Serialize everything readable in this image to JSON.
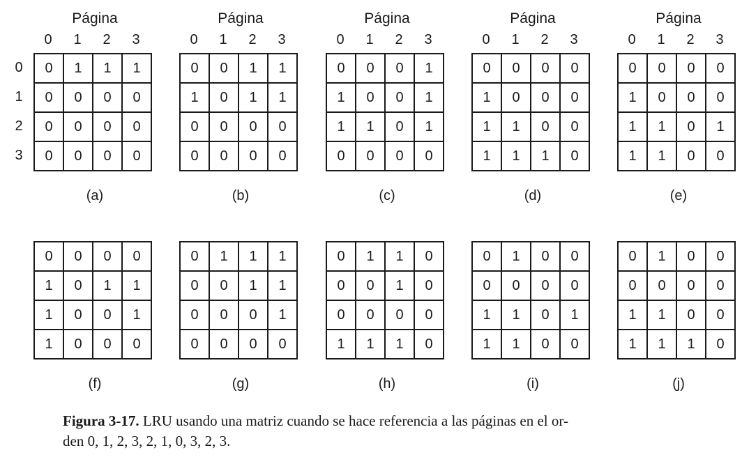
{
  "page_word": "Página",
  "col_headers": [
    "0",
    "1",
    "2",
    "3"
  ],
  "row_headers": [
    "0",
    "1",
    "2",
    "3"
  ],
  "panels": [
    {
      "label": "(a)",
      "matrix": [
        [
          "0",
          "1",
          "1",
          "1"
        ],
        [
          "0",
          "0",
          "0",
          "0"
        ],
        [
          "0",
          "0",
          "0",
          "0"
        ],
        [
          "0",
          "0",
          "0",
          "0"
        ]
      ]
    },
    {
      "label": "(b)",
      "matrix": [
        [
          "0",
          "0",
          "1",
          "1"
        ],
        [
          "1",
          "0",
          "1",
          "1"
        ],
        [
          "0",
          "0",
          "0",
          "0"
        ],
        [
          "0",
          "0",
          "0",
          "0"
        ]
      ]
    },
    {
      "label": "(c)",
      "matrix": [
        [
          "0",
          "0",
          "0",
          "1"
        ],
        [
          "1",
          "0",
          "0",
          "1"
        ],
        [
          "1",
          "1",
          "0",
          "1"
        ],
        [
          "0",
          "0",
          "0",
          "0"
        ]
      ]
    },
    {
      "label": "(d)",
      "matrix": [
        [
          "0",
          "0",
          "0",
          "0"
        ],
        [
          "1",
          "0",
          "0",
          "0"
        ],
        [
          "1",
          "1",
          "0",
          "0"
        ],
        [
          "1",
          "1",
          "1",
          "0"
        ]
      ]
    },
    {
      "label": "(e)",
      "matrix": [
        [
          "0",
          "0",
          "0",
          "0"
        ],
        [
          "1",
          "0",
          "0",
          "0"
        ],
        [
          "1",
          "1",
          "0",
          "1"
        ],
        [
          "1",
          "1",
          "0",
          "0"
        ]
      ]
    },
    {
      "label": "(f)",
      "matrix": [
        [
          "0",
          "0",
          "0",
          "0"
        ],
        [
          "1",
          "0",
          "1",
          "1"
        ],
        [
          "1",
          "0",
          "0",
          "1"
        ],
        [
          "1",
          "0",
          "0",
          "0"
        ]
      ]
    },
    {
      "label": "(g)",
      "matrix": [
        [
          "0",
          "1",
          "1",
          "1"
        ],
        [
          "0",
          "0",
          "1",
          "1"
        ],
        [
          "0",
          "0",
          "0",
          "1"
        ],
        [
          "0",
          "0",
          "0",
          "0"
        ]
      ]
    },
    {
      "label": "(h)",
      "matrix": [
        [
          "0",
          "1",
          "1",
          "0"
        ],
        [
          "0",
          "0",
          "1",
          "0"
        ],
        [
          "0",
          "0",
          "0",
          "0"
        ],
        [
          "1",
          "1",
          "1",
          "0"
        ]
      ]
    },
    {
      "label": "(i)",
      "matrix": [
        [
          "0",
          "1",
          "0",
          "0"
        ],
        [
          "0",
          "0",
          "0",
          "0"
        ],
        [
          "1",
          "1",
          "0",
          "1"
        ],
        [
          "1",
          "1",
          "0",
          "0"
        ]
      ]
    },
    {
      "label": "(j)",
      "matrix": [
        [
          "0",
          "1",
          "0",
          "0"
        ],
        [
          "0",
          "0",
          "0",
          "0"
        ],
        [
          "1",
          "1",
          "0",
          "0"
        ],
        [
          "1",
          "1",
          "1",
          "0"
        ]
      ]
    }
  ],
  "caption": {
    "label": "Figura 3-17.",
    "line1": "LRU usando una matriz cuando se hace referencia a las páginas en el or-",
    "line2": "den 0, 1, 2, 3, 2, 1, 0, 3, 2, 3."
  }
}
